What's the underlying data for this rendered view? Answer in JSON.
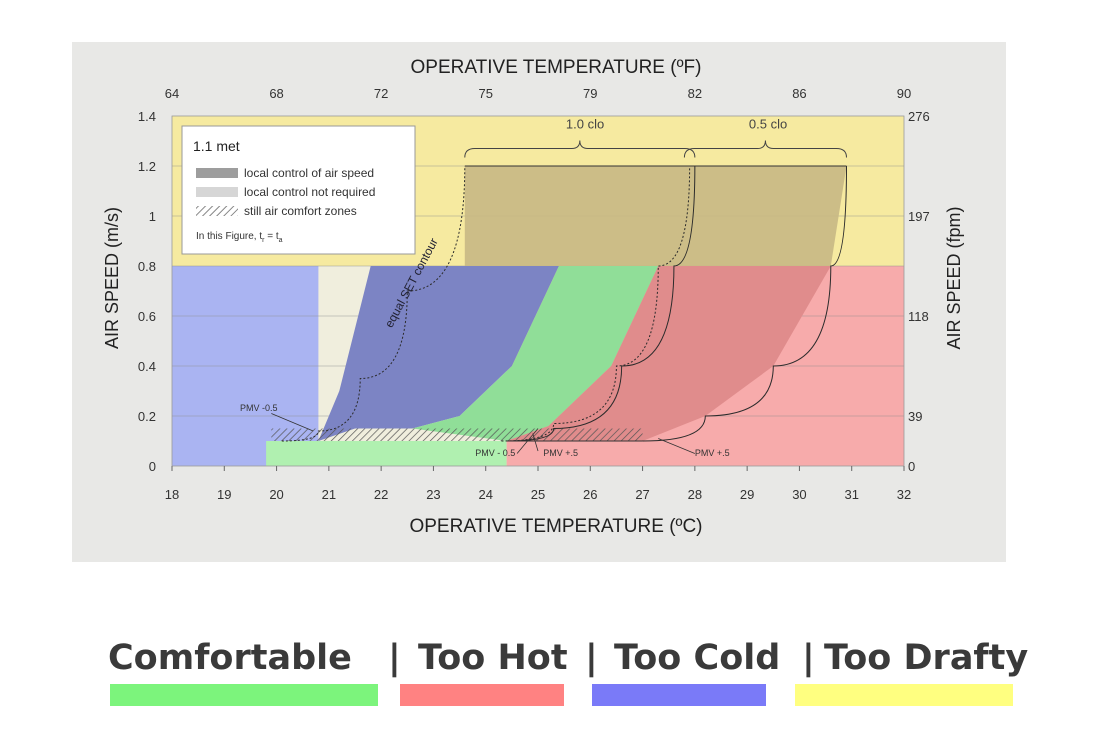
{
  "chart_data": {
    "type": "area",
    "title": "",
    "top_axis_title": "OPERATIVE TEMPERATURE (ºF)",
    "bottom_axis_title": "OPERATIVE TEMPERATURE (ºC)",
    "left_axis_title": "AIR SPEED (m/s)",
    "right_axis_title": "AIR SPEED (fpm)",
    "xlim": [
      18,
      32
    ],
    "ylim": [
      0,
      1.4
    ],
    "x_ticks": [
      "18",
      "19",
      "20",
      "21",
      "22",
      "23",
      "24",
      "25",
      "26",
      "27",
      "28",
      "29",
      "30",
      "31",
      "32"
    ],
    "y_ticks": [
      "0",
      "0.2",
      "0.4",
      "0.6",
      "0.8",
      "1",
      "1.2",
      "1.4"
    ],
    "top_ticks": [
      {
        "x": 18,
        "label": "64"
      },
      {
        "x": 20,
        "label": "68"
      },
      {
        "x": 22,
        "label": "72"
      },
      {
        "x": 24,
        "label": "75"
      },
      {
        "x": 26,
        "label": "79"
      },
      {
        "x": 28,
        "label": "82"
      },
      {
        "x": 30,
        "label": "86"
      },
      {
        "x": 32,
        "label": "90"
      }
    ],
    "right_ticks": [
      {
        "y": 0,
        "label": "0"
      },
      {
        "y": 0.2,
        "label": "39"
      },
      {
        "y": 0.6,
        "label": "118"
      },
      {
        "y": 1.0,
        "label": "197"
      },
      {
        "y": 1.4,
        "label": "276"
      }
    ],
    "background_regions": [
      {
        "name": "Too Drafty",
        "color": "#f6eaa0",
        "x": [
          18,
          32
        ],
        "y": [
          0.8,
          1.4
        ]
      },
      {
        "name": "Too Cold",
        "color": "#aab4f2",
        "x": [
          18,
          20.8
        ],
        "y": [
          0,
          0.8
        ]
      },
      {
        "name": "Comfortable",
        "color": "#b0f0b0",
        "x": [
          19.8,
          24.4
        ],
        "y": [
          0,
          0.1
        ]
      },
      {
        "name": "Too Hot",
        "color": "#f7abab",
        "x": [
          24.4,
          32
        ],
        "y": [
          0,
          0.8
        ]
      }
    ],
    "zones": [
      {
        "name": "cold-zone",
        "color": "#7c84c4",
        "points": [
          [
            20.8,
            0.1
          ],
          [
            21.5,
            0.15
          ],
          [
            22.6,
            0.15
          ],
          [
            23.5,
            0.2
          ],
          [
            24.5,
            0.4
          ],
          [
            25.4,
            0.8
          ],
          [
            21.8,
            0.8
          ],
          [
            21.2,
            0.3
          ]
        ]
      },
      {
        "name": "comfort-zone",
        "color": "#90de98",
        "points": [
          [
            22.6,
            0.15
          ],
          [
            23.5,
            0.2
          ],
          [
            24.5,
            0.4
          ],
          [
            25.4,
            0.8
          ],
          [
            27.3,
            0.8
          ],
          [
            26.4,
            0.4
          ],
          [
            25.2,
            0.16
          ],
          [
            24.4,
            0.1
          ]
        ]
      },
      {
        "name": "hot-zone",
        "color": "#e08c8c",
        "points": [
          [
            24.4,
            0.1
          ],
          [
            27,
            0.1
          ],
          [
            28.2,
            0.2
          ],
          [
            29.5,
            0.4
          ],
          [
            30.6,
            0.8
          ],
          [
            27.3,
            0.8
          ],
          [
            26.4,
            0.4
          ],
          [
            25.2,
            0.16
          ]
        ]
      },
      {
        "name": "air-speed-control-zone",
        "color": "#c8b884",
        "points": [
          [
            23.6,
            0.8
          ],
          [
            23.6,
            1.2
          ],
          [
            30.9,
            1.2
          ],
          [
            30.6,
            0.8
          ]
        ]
      }
    ],
    "boundaries": [
      {
        "name": "set-contour-cold",
        "dash": true,
        "points": [
          [
            20.1,
            0.1
          ],
          [
            20.8,
            0.14
          ],
          [
            21.6,
            0.35
          ],
          [
            22.5,
            0.7
          ],
          [
            23.6,
            1.2
          ]
        ]
      },
      {
        "name": "set-contour-mid",
        "dash": true,
        "points": [
          [
            24.3,
            0.1
          ],
          [
            25.3,
            0.17
          ],
          [
            26.5,
            0.4
          ],
          [
            27.3,
            0.8
          ],
          [
            27.9,
            1.2
          ]
        ]
      },
      {
        "name": "set-contour-warm",
        "dash": false,
        "points": [
          [
            24.4,
            0.1
          ],
          [
            25.3,
            0.15
          ],
          [
            26.6,
            0.4
          ],
          [
            27.6,
            0.8
          ],
          [
            28.0,
            1.2
          ]
        ]
      },
      {
        "name": "pmv-plus-contour",
        "dash": false,
        "points": [
          [
            27,
            0.1
          ],
          [
            28.2,
            0.2
          ],
          [
            29.5,
            0.4
          ],
          [
            30.6,
            0.8
          ],
          [
            30.9,
            1.2
          ]
        ]
      }
    ],
    "still_air_zones": [
      {
        "name": "still-air-cold",
        "x": [
          19.9,
          24.3
        ],
        "y": [
          0.1,
          0.15
        ]
      },
      {
        "name": "still-air-warm",
        "x": [
          24.3,
          27
        ],
        "y": [
          0.1,
          0.15
        ]
      }
    ],
    "annotations": [
      {
        "text": "PMV -0.5",
        "x": 19.3,
        "y": 0.22
      },
      {
        "text": "PMV - 0.5",
        "x": 23.8,
        "y": 0.04
      },
      {
        "text": "PMV +.5",
        "x": 25.1,
        "y": 0.04
      },
      {
        "text": "PMV +.5",
        "x": 28,
        "y": 0.04
      },
      {
        "text": "equal SET contour",
        "x": 22.2,
        "y": 0.55
      },
      {
        "text": "1.0 clo",
        "x": 25.9,
        "y": 1.35
      },
      {
        "text": "0.5 clo",
        "x": 29.4,
        "y": 1.35
      }
    ],
    "clo_braces": [
      {
        "label": "1.0 clo",
        "x": [
          23.6,
          28.0
        ],
        "y": 1.27
      },
      {
        "label": "0.5 clo",
        "x": [
          27.8,
          30.9
        ],
        "y": 1.27
      }
    ],
    "legend": {
      "title": "1.1 met",
      "items": [
        {
          "label": "local control of air speed",
          "style": "dark"
        },
        {
          "label": "local control not required",
          "style": "light"
        },
        {
          "label": "still air comfort zones",
          "style": "hatch"
        }
      ],
      "note": "In this Figure, t",
      "note_r_sub": "r",
      "note_eq": "= t",
      "note_a_sub": "a"
    }
  },
  "color_legend": [
    {
      "label": "Comfortable",
      "color": "#7cf47c"
    },
    {
      "label": "Too Hot",
      "color": "#ff8282"
    },
    {
      "label": "Too Cold",
      "color": "#7a7af8"
    },
    {
      "label": "Too Drafty",
      "color": "#ffff80"
    }
  ],
  "separator": "|"
}
